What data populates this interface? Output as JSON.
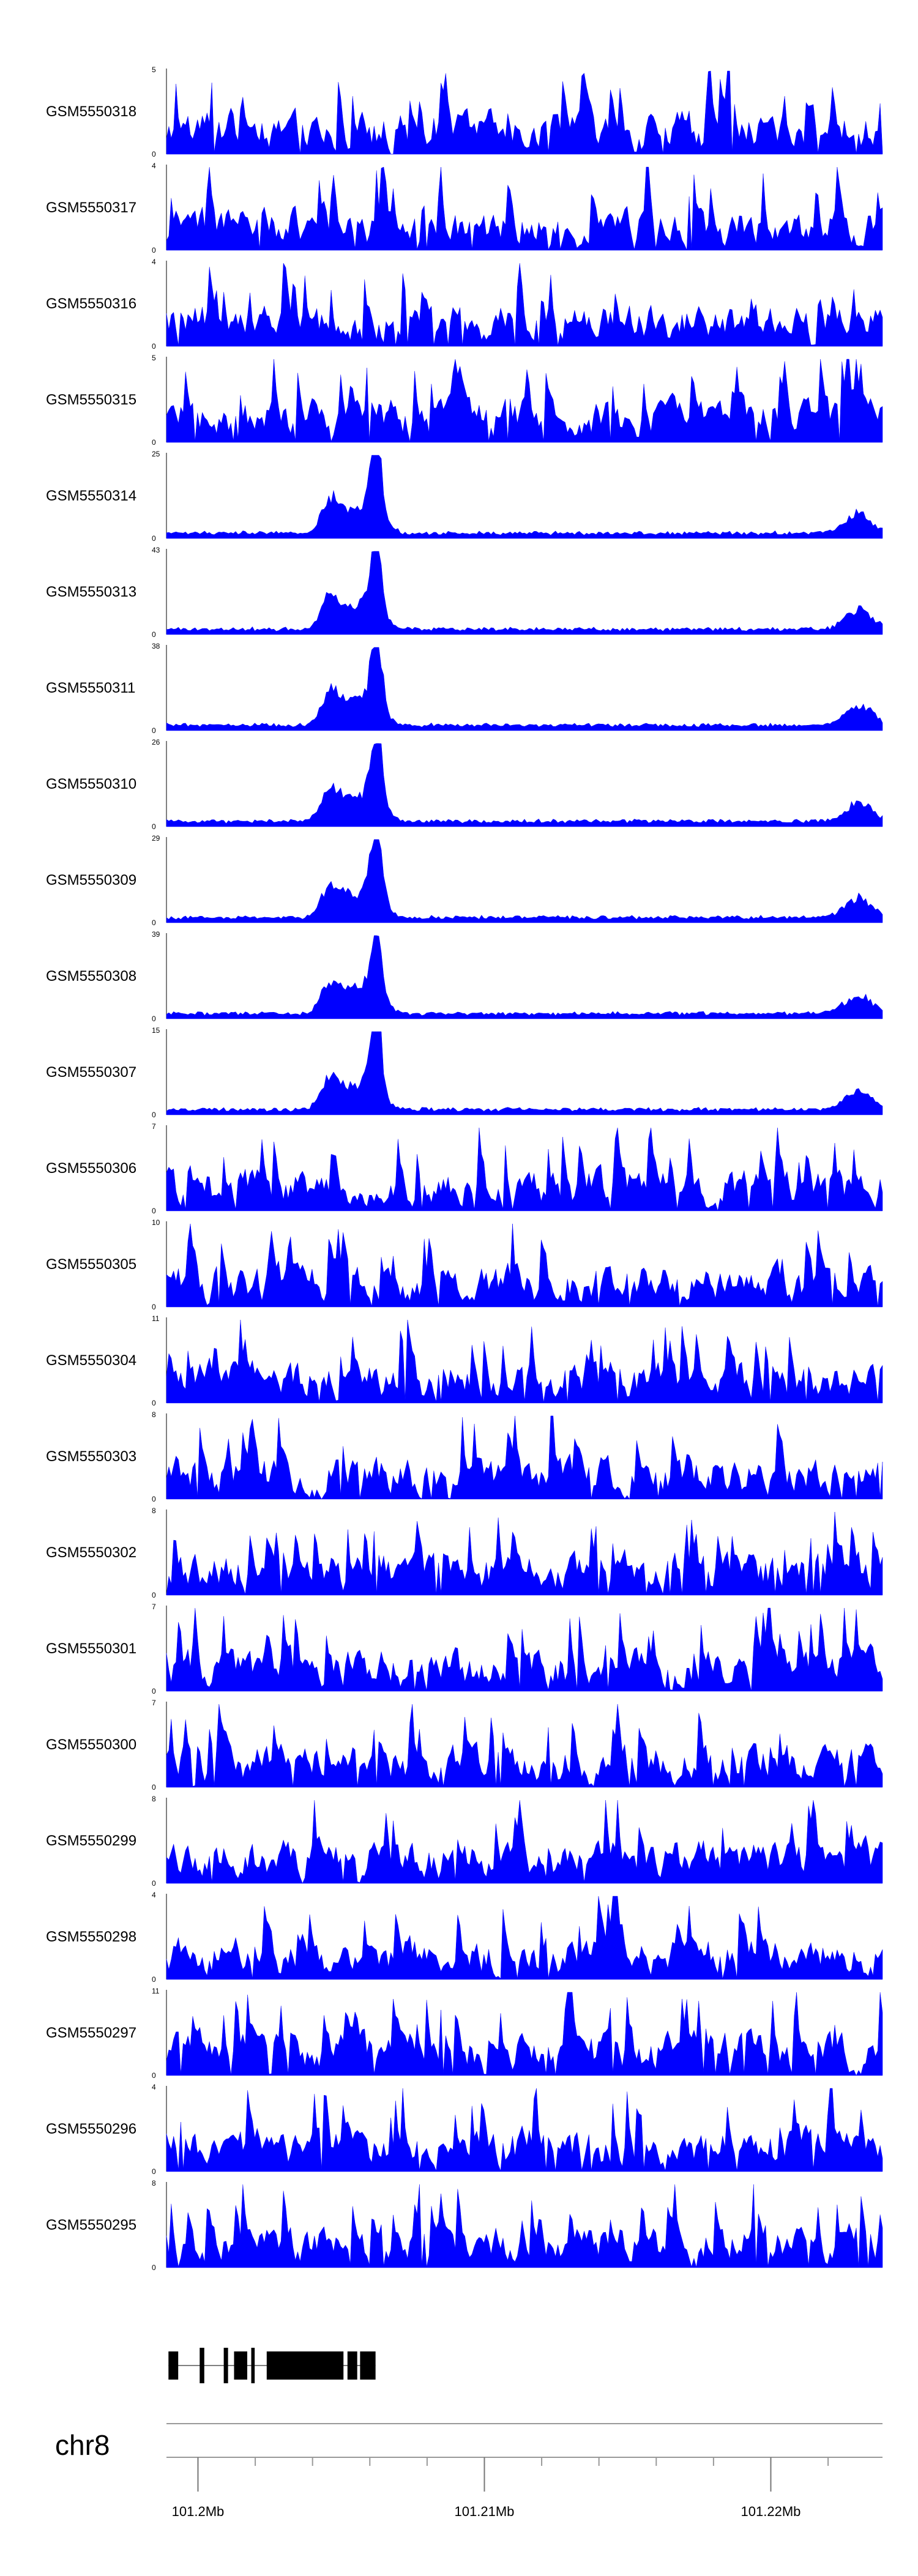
{
  "chart_data": {
    "type": "area",
    "x_unit": "Mb",
    "xlim": [
      101.1989,
      101.2239
    ],
    "fill_color": "#0000ff",
    "tracks": [
      {
        "name": "GSM5550318",
        "ymax": 5
      },
      {
        "name": "GSM5550317",
        "ymax": 4
      },
      {
        "name": "GSM5550316",
        "ymax": 4
      },
      {
        "name": "GSM5550315",
        "ymax": 5
      },
      {
        "name": "GSM5550314",
        "ymax": 25
      },
      {
        "name": "GSM5550313",
        "ymax": 43
      },
      {
        "name": "GSM5550311",
        "ymax": 38
      },
      {
        "name": "GSM5550310",
        "ymax": 26
      },
      {
        "name": "GSM5550309",
        "ymax": 29
      },
      {
        "name": "GSM5550308",
        "ymax": 39
      },
      {
        "name": "GSM5550307",
        "ymax": 15
      },
      {
        "name": "GSM5550306",
        "ymax": 7
      },
      {
        "name": "GSM5550305",
        "ymax": 10
      },
      {
        "name": "GSM5550304",
        "ymax": 11
      },
      {
        "name": "GSM5550303",
        "ymax": 8
      },
      {
        "name": "GSM5550302",
        "ymax": 8
      },
      {
        "name": "GSM5550301",
        "ymax": 7
      },
      {
        "name": "GSM5550300",
        "ymax": 7
      },
      {
        "name": "GSM5550299",
        "ymax": 8
      },
      {
        "name": "GSM5550298",
        "ymax": 4
      },
      {
        "name": "GSM5550297",
        "ymax": 11
      },
      {
        "name": "GSM5550296",
        "ymax": 4
      },
      {
        "name": "GSM5550295",
        "ymax": 8
      }
    ],
    "gene_model": {
      "exons": [
        [
          101.19897,
          101.19931
        ],
        [
          101.20006,
          101.20022
        ],
        [
          101.2009,
          101.20105
        ],
        [
          101.20126,
          101.20172
        ],
        [
          101.20186,
          101.20198
        ],
        [
          101.2024,
          101.20508
        ],
        [
          101.20522,
          101.20556
        ],
        [
          101.20566,
          101.2062
        ]
      ],
      "span": [
        101.19897,
        101.2062
      ]
    },
    "chromosome": "chr8",
    "axis_ticks": [
      101.2,
      101.202,
      101.204,
      101.206,
      101.208,
      101.21,
      101.212,
      101.214,
      101.216,
      101.218,
      101.22,
      101.222
    ],
    "axis_labels": [
      {
        "at": 101.2,
        "text": "101.2Mb"
      },
      {
        "at": 101.21,
        "text": "101.21Mb"
      },
      {
        "at": 101.22,
        "text": "101.22Mb"
      }
    ],
    "y_zero_label": "0"
  }
}
